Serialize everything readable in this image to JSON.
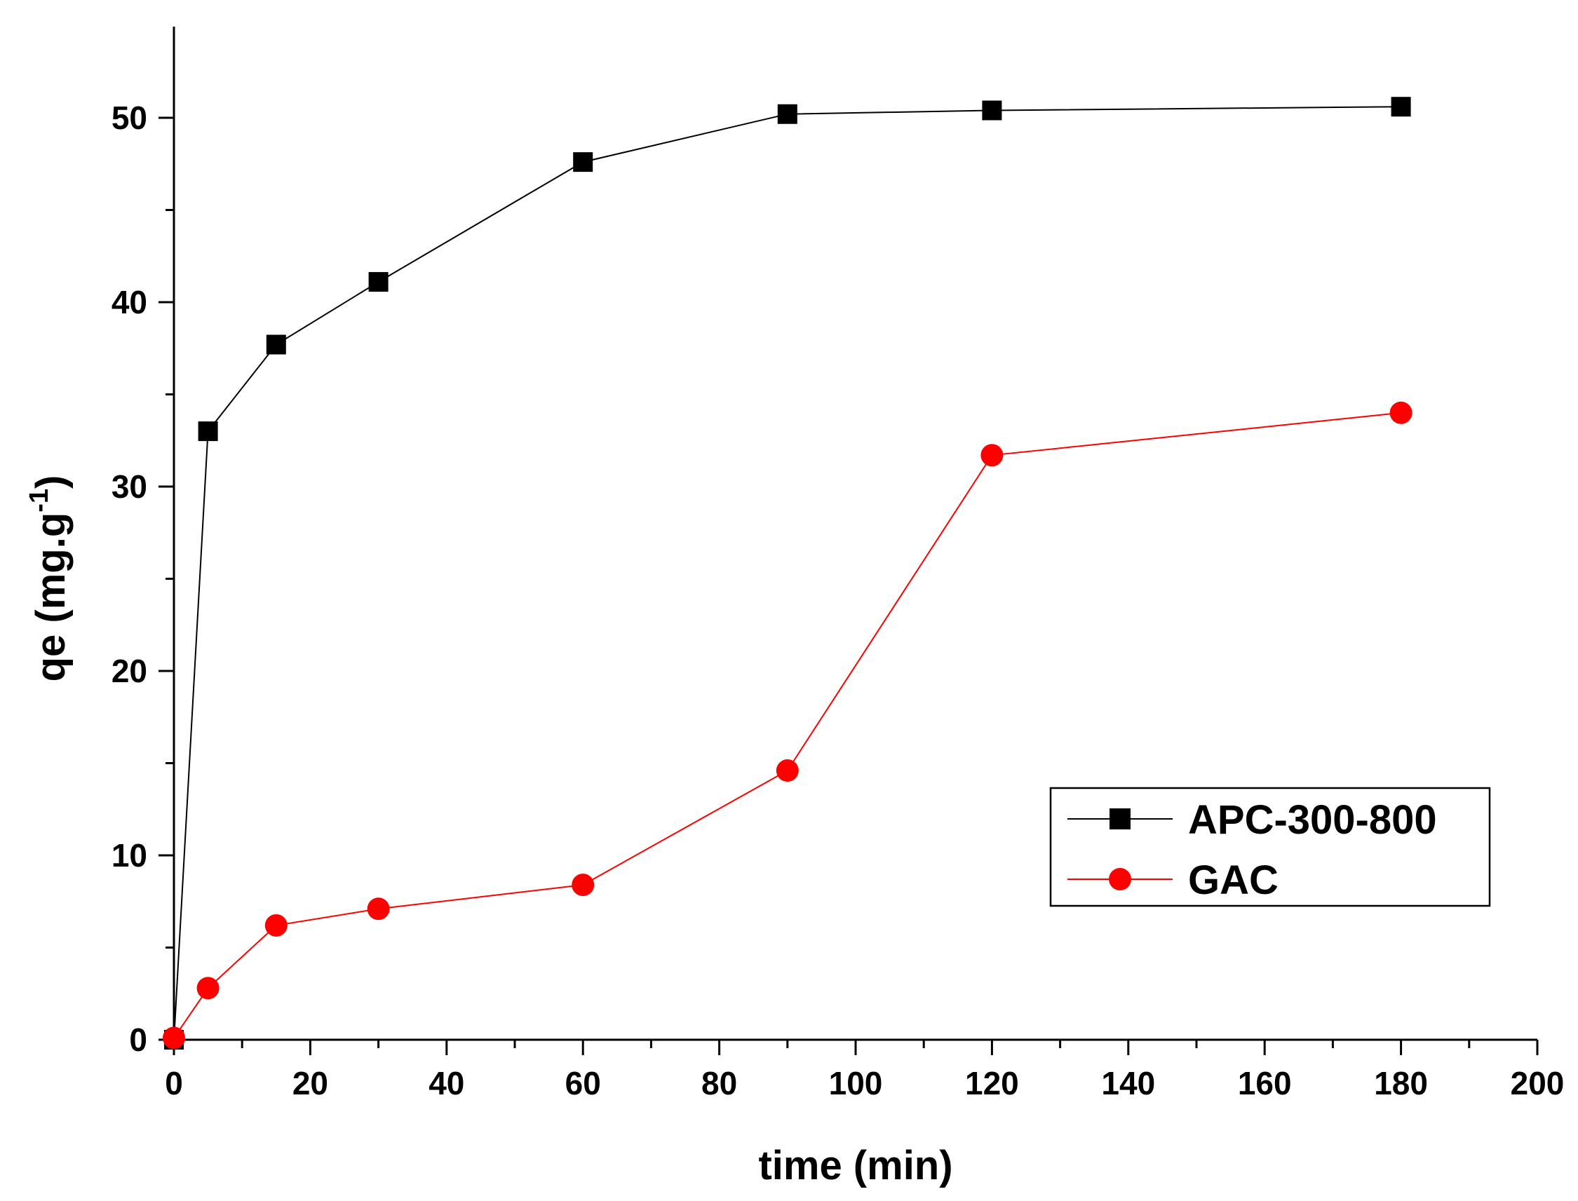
{
  "chart_data": {
    "type": "line",
    "title": "",
    "xlabel": "time (min)",
    "ylabel": {
      "main": "qe (mg.g",
      "superscript": "-1",
      "close": ")"
    },
    "xlim": [
      0,
      200
    ],
    "ylim": [
      0,
      55
    ],
    "x_major_ticks": [
      0,
      20,
      40,
      60,
      80,
      100,
      120,
      140,
      160,
      180,
      200
    ],
    "x_minor_ticks": [
      10,
      30,
      50,
      70,
      90,
      110,
      130,
      150,
      170,
      190
    ],
    "y_major_ticks": [
      0,
      10,
      20,
      30,
      40,
      50
    ],
    "y_minor_ticks": [
      5,
      15,
      25,
      35,
      45
    ],
    "legend_position": "bottom-right",
    "series": [
      {
        "name": "APC-300-800",
        "marker": "square",
        "color": "#000000",
        "x": [
          0,
          5,
          15,
          30,
          60,
          90,
          120,
          180
        ],
        "y": [
          0,
          33.0,
          37.7,
          41.1,
          47.6,
          50.2,
          50.4,
          50.6
        ]
      },
      {
        "name": "GAC",
        "marker": "circle",
        "color": "#ff0000",
        "x": [
          0,
          5,
          15,
          30,
          60,
          90,
          120,
          180
        ],
        "y": [
          0.1,
          2.8,
          6.2,
          7.1,
          8.4,
          14.6,
          31.7,
          34.0
        ]
      }
    ]
  }
}
